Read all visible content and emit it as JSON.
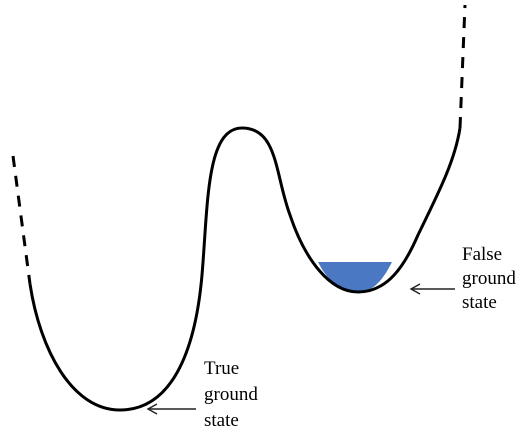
{
  "labels": {
    "false_ground_state": [
      "False",
      "ground",
      "state"
    ],
    "true_ground_state": [
      "True",
      "ground",
      "state"
    ]
  },
  "colors": {
    "curve": "#000000",
    "false_vacuum_fill": "#4a78c2",
    "arrow": "#222222",
    "background": "#ffffff"
  }
}
